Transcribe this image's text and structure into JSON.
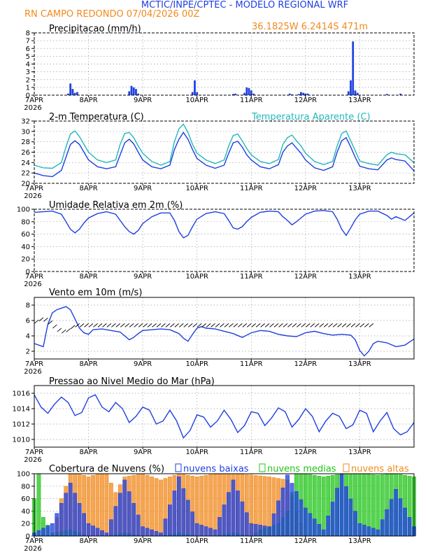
{
  "header": {
    "line1": "MCTIC/INPE/CPTEC - MODELO REGIONAL WRF",
    "line2": "RN CAMPO REDONDO     07/04/2026 00Z",
    "coords": "36.1825W 6.2414S 471m"
  },
  "colors": {
    "blue": "#1e3fe0",
    "cyan": "#22b8b8",
    "orange": "#f08a1e",
    "green": "#22c41a",
    "grid": "#a0a0a0"
  },
  "x_axis": {
    "labels": [
      "7APR",
      "8APR",
      "9APR",
      "10APR",
      "11APR",
      "12APR",
      "13APR"
    ],
    "year": "2026",
    "hours_total": 168,
    "label_hours": [
      0,
      24,
      48,
      72,
      96,
      120,
      144
    ]
  },
  "panels": {
    "precip": {
      "title": "Precipitacao (mm/h)",
      "ylim": [
        0,
        8
      ],
      "yticks": [
        "0",
        "1",
        "2",
        "3",
        "4",
        "5",
        "6",
        "7",
        "8"
      ]
    },
    "temp": {
      "title": "2-m Temperatura (C)",
      "legend": "Temperatura Aparente (C)",
      "ylim": [
        20,
        32
      ],
      "yticks": [
        "20",
        "22",
        "24",
        "26",
        "28",
        "30",
        "32"
      ]
    },
    "rh": {
      "title": "Umidade Relativa em 2m (%)",
      "ylim": [
        0,
        100
      ],
      "yticks": [
        "0",
        "20",
        "40",
        "60",
        "80",
        "100"
      ]
    },
    "wind": {
      "title": "Vento em 10m (m/s)",
      "ylim": [
        1,
        9
      ],
      "yticks": [
        "2",
        "4",
        "6",
        "8"
      ]
    },
    "pres": {
      "title": "Pressao ao Nivel Medio do Mar (hPa)",
      "ylim": [
        1009,
        1017
      ],
      "yticks": [
        "1010",
        "1012",
        "1014",
        "1016"
      ]
    },
    "cloud": {
      "title": "Cobertura de Nuvens (%)",
      "legend": [
        "nuvens baixas",
        "nuvens medias",
        "nuvens altas"
      ],
      "ylim": [
        0,
        100
      ],
      "yticks": [
        "0",
        "20",
        "40",
        "60",
        "80",
        "100"
      ]
    }
  },
  "chart_data": [
    {
      "type": "bar",
      "title": "Precipitacao (mm/h)",
      "ylabel": "mm/h",
      "ylim": [
        0,
        8
      ],
      "series": [
        {
          "name": "",
          "color": "#1e3fe0",
          "x": [
            15,
            16,
            17,
            18,
            19,
            42,
            43,
            44,
            45,
            46,
            70,
            71,
            72,
            88,
            89,
            93,
            94,
            95,
            96,
            97,
            113,
            114,
            117,
            118,
            119,
            120,
            121,
            139,
            140,
            141,
            142,
            143,
            156,
            162
          ],
          "values": [
            0.2,
            1.5,
            0.8,
            0.3,
            0.4,
            0.5,
            1.2,
            1.0,
            0.8,
            0.2,
            0.4,
            1.9,
            0.4,
            0.15,
            0.2,
            0.3,
            1.0,
            0.9,
            0.6,
            0.2,
            0.2,
            0.1,
            0.15,
            0.4,
            0.3,
            0.2,
            0.2,
            0.5,
            1.9,
            6.9,
            0.6,
            0.3,
            0.15,
            0.2
          ]
        }
      ]
    },
    {
      "type": "line",
      "title": "2-m Temperatura (C)",
      "ylim": [
        20,
        32
      ],
      "series": [
        {
          "name": "",
          "color": "#1e3fe0",
          "x": [
            0,
            4,
            8,
            12,
            14,
            16,
            18,
            20,
            22,
            24,
            28,
            32,
            36,
            38,
            40,
            42,
            44,
            46,
            48,
            52,
            56,
            60,
            62,
            64,
            66,
            68,
            70,
            72,
            76,
            80,
            84,
            86,
            88,
            90,
            92,
            94,
            96,
            100,
            104,
            108,
            110,
            112,
            114,
            116,
            118,
            120,
            124,
            128,
            132,
            134,
            136,
            138,
            140,
            142,
            144,
            148,
            152,
            156,
            158,
            160,
            164,
            168
          ],
          "values": [
            22.0,
            21.5,
            21.3,
            22.5,
            25,
            27.5,
            28.2,
            27.5,
            26,
            24.5,
            23.2,
            22.8,
            23.2,
            25.5,
            27.8,
            28.5,
            27.6,
            26,
            24.5,
            23.2,
            22.8,
            23.5,
            26.5,
            28.5,
            29.8,
            28.5,
            26.5,
            24.8,
            23.5,
            22.9,
            23.5,
            25.8,
            27.8,
            28.1,
            27.0,
            25.5,
            24.5,
            23.2,
            22.8,
            23.6,
            26,
            27.2,
            27.8,
            26.8,
            25.8,
            24.5,
            23.0,
            22.5,
            23.2,
            26,
            28.2,
            28.8,
            27.0,
            25,
            23.3,
            22.8,
            22.6,
            24.5,
            24.9,
            24.6,
            24.3,
            22.4
          ]
        },
        {
          "name": "Temperatura Aparente (C)",
          "color": "#22b8b8",
          "x": [
            0,
            4,
            8,
            12,
            14,
            16,
            18,
            20,
            22,
            24,
            28,
            32,
            36,
            38,
            40,
            42,
            44,
            46,
            48,
            52,
            56,
            60,
            62,
            64,
            66,
            68,
            70,
            72,
            76,
            80,
            84,
            86,
            88,
            90,
            92,
            94,
            96,
            100,
            104,
            108,
            110,
            112,
            114,
            116,
            118,
            120,
            124,
            128,
            132,
            134,
            136,
            138,
            140,
            142,
            144,
            148,
            152,
            156,
            158,
            160,
            164,
            168
          ],
          "values": [
            23.5,
            23.0,
            22.9,
            24.0,
            27,
            29.5,
            30.1,
            29,
            27.5,
            26,
            24.5,
            24.0,
            24.5,
            27.5,
            29.6,
            29.8,
            28.8,
            27.2,
            25.8,
            24.2,
            23.5,
            24.2,
            28,
            30.5,
            31.4,
            29.8,
            27.5,
            25.8,
            24.5,
            23.8,
            24.5,
            27.2,
            29.2,
            29.5,
            28.2,
            26.7,
            25.5,
            24.2,
            23.8,
            24.6,
            27.5,
            28.8,
            29.3,
            28.2,
            27.2,
            25.8,
            24.2,
            23.6,
            24.2,
            27.2,
            29.6,
            30.1,
            28.2,
            26.3,
            24.3,
            23.8,
            23.5,
            25.5,
            26.0,
            25.7,
            25.5,
            24.0
          ]
        }
      ]
    },
    {
      "type": "line",
      "title": "Umidade Relativa em 2m (%)",
      "ylim": [
        0,
        100
      ],
      "series": [
        {
          "name": "",
          "color": "#1e3fe0",
          "x": [
            0,
            4,
            8,
            12,
            14,
            16,
            18,
            20,
            22,
            24,
            28,
            32,
            36,
            38,
            40,
            42,
            44,
            46,
            48,
            52,
            56,
            60,
            62,
            64,
            66,
            68,
            70,
            72,
            76,
            80,
            84,
            86,
            88,
            90,
            92,
            94,
            96,
            100,
            104,
            108,
            110,
            112,
            114,
            116,
            118,
            120,
            124,
            128,
            132,
            134,
            136,
            138,
            140,
            142,
            144,
            148,
            152,
            156,
            158,
            160,
            164,
            168
          ],
          "values": [
            95,
            96,
            97,
            92,
            80,
            68,
            62,
            68,
            78,
            86,
            93,
            96,
            92,
            82,
            72,
            64,
            60,
            66,
            77,
            88,
            94,
            94,
            82,
            64,
            54,
            58,
            72,
            84,
            93,
            96,
            93,
            82,
            70,
            68,
            72,
            80,
            87,
            95,
            97,
            96,
            88,
            82,
            75,
            80,
            86,
            92,
            97,
            98,
            96,
            84,
            68,
            58,
            70,
            83,
            92,
            97,
            97,
            90,
            84,
            88,
            82,
            94
          ]
        }
      ]
    },
    {
      "type": "line",
      "title": "Vento em 10m (m/s)",
      "ylim": [
        1,
        9
      ],
      "series": [
        {
          "name": "",
          "color": "#1e3fe0",
          "x": [
            0,
            2,
            4,
            6,
            8,
            10,
            12,
            14,
            16,
            18,
            20,
            22,
            24,
            26,
            30,
            34,
            38,
            40,
            42,
            44,
            46,
            48,
            52,
            56,
            60,
            64,
            66,
            68,
            70,
            72,
            74,
            76,
            80,
            84,
            88,
            92,
            96,
            100,
            104,
            108,
            112,
            116,
            120,
            124,
            128,
            132,
            136,
            140,
            142,
            144,
            146,
            148,
            150,
            152,
            156,
            160,
            164,
            168
          ],
          "values": [
            3.0,
            2.8,
            2.6,
            5.5,
            7.0,
            7.4,
            7.6,
            7.8,
            7.4,
            6.2,
            5.0,
            4.4,
            4.2,
            4.8,
            4.9,
            4.7,
            4.5,
            4.0,
            3.5,
            3.8,
            4.3,
            4.7,
            4.8,
            4.9,
            4.8,
            4.3,
            3.7,
            3.3,
            4.2,
            5.0,
            5.2,
            5.0,
            4.9,
            4.6,
            4.3,
            3.8,
            4.4,
            4.7,
            4.6,
            4.2,
            4.0,
            3.9,
            4.4,
            4.6,
            4.3,
            4.1,
            4.2,
            4.1,
            3.5,
            2.1,
            1.4,
            2.0,
            3.0,
            3.3,
            3.1,
            2.6,
            2.8,
            3.6
          ]
        }
      ]
    },
    {
      "type": "line",
      "title": "Pressao ao Nivel Medio do Mar (hPa)",
      "ylim": [
        1009,
        1017
      ],
      "series": [
        {
          "name": "",
          "color": "#1e3fe0",
          "x": [
            0,
            3,
            6,
            9,
            12,
            15,
            18,
            21,
            24,
            27,
            30,
            33,
            36,
            39,
            42,
            45,
            48,
            51,
            54,
            57,
            60,
            63,
            66,
            69,
            72,
            75,
            78,
            81,
            84,
            87,
            90,
            93,
            96,
            99,
            102,
            105,
            108,
            111,
            114,
            117,
            120,
            123,
            126,
            129,
            132,
            135,
            138,
            141,
            144,
            147,
            150,
            153,
            156,
            159,
            162,
            165,
            168
          ],
          "values": [
            1015.8,
            1014.2,
            1013.4,
            1014.6,
            1015.5,
            1014.8,
            1013.1,
            1013.5,
            1015.4,
            1015.8,
            1014.2,
            1013.6,
            1014.8,
            1014.0,
            1012.2,
            1013.0,
            1014.2,
            1013.8,
            1012.0,
            1012.4,
            1013.8,
            1012.4,
            1010.2,
            1011.2,
            1013.2,
            1012.9,
            1011.6,
            1012.4,
            1013.8,
            1012.6,
            1010.9,
            1011.8,
            1013.6,
            1013.4,
            1011.8,
            1012.8,
            1014.1,
            1013.6,
            1011.6,
            1012.6,
            1014.0,
            1013.0,
            1011.0,
            1012.4,
            1013.4,
            1013.0,
            1011.4,
            1011.9,
            1013.8,
            1013.4,
            1011.0,
            1012.4,
            1013.5,
            1011.4,
            1010.6,
            1011.0,
            1012.2
          ]
        }
      ]
    },
    {
      "type": "bar",
      "title": "Cobertura de Nuvens (%)",
      "ylim": [
        0,
        100
      ],
      "series": [
        {
          "name": "nuvens baixas",
          "color": "#1e3fe0",
          "x": [
            0,
            8,
            16,
            24,
            32,
            40,
            48,
            56,
            64,
            72,
            80,
            88,
            96,
            104,
            112,
            120,
            128,
            136,
            144,
            152,
            160,
            168
          ],
          "values": [
            5,
            20,
            85,
            20,
            5,
            90,
            15,
            5,
            95,
            20,
            10,
            90,
            20,
            15,
            98,
            45,
            10,
            99,
            20,
            10,
            75,
            15
          ]
        },
        {
          "name": "nuvens medias",
          "color": "#22c41a",
          "x": [
            0,
            2,
            4,
            8,
            16,
            24,
            32,
            40,
            48,
            56,
            64,
            72,
            80,
            88,
            96,
            100,
            104,
            108,
            112,
            116,
            120,
            128,
            136,
            144,
            152,
            160,
            168
          ],
          "values": [
            60,
            100,
            30,
            5,
            10,
            0,
            0,
            5,
            0,
            0,
            5,
            0,
            0,
            5,
            0,
            10,
            15,
            20,
            40,
            100,
            100,
            95,
            100,
            100,
            98,
            100,
            95
          ]
        },
        {
          "name": "nuvens altas",
          "color": "#f08a1e",
          "x": [
            0,
            8,
            12,
            16,
            20,
            24,
            28,
            32,
            36,
            40,
            48,
            56,
            64,
            72,
            80,
            88,
            96,
            104,
            112,
            116,
            120,
            128,
            136,
            144,
            152,
            160,
            168
          ],
          "values": [
            0,
            0,
            60,
            100,
            100,
            95,
            100,
            100,
            70,
            95,
            100,
            90,
            100,
            95,
            100,
            100,
            98,
            95,
            90,
            40,
            0,
            0,
            0,
            0,
            0,
            0,
            0
          ]
        }
      ]
    }
  ]
}
